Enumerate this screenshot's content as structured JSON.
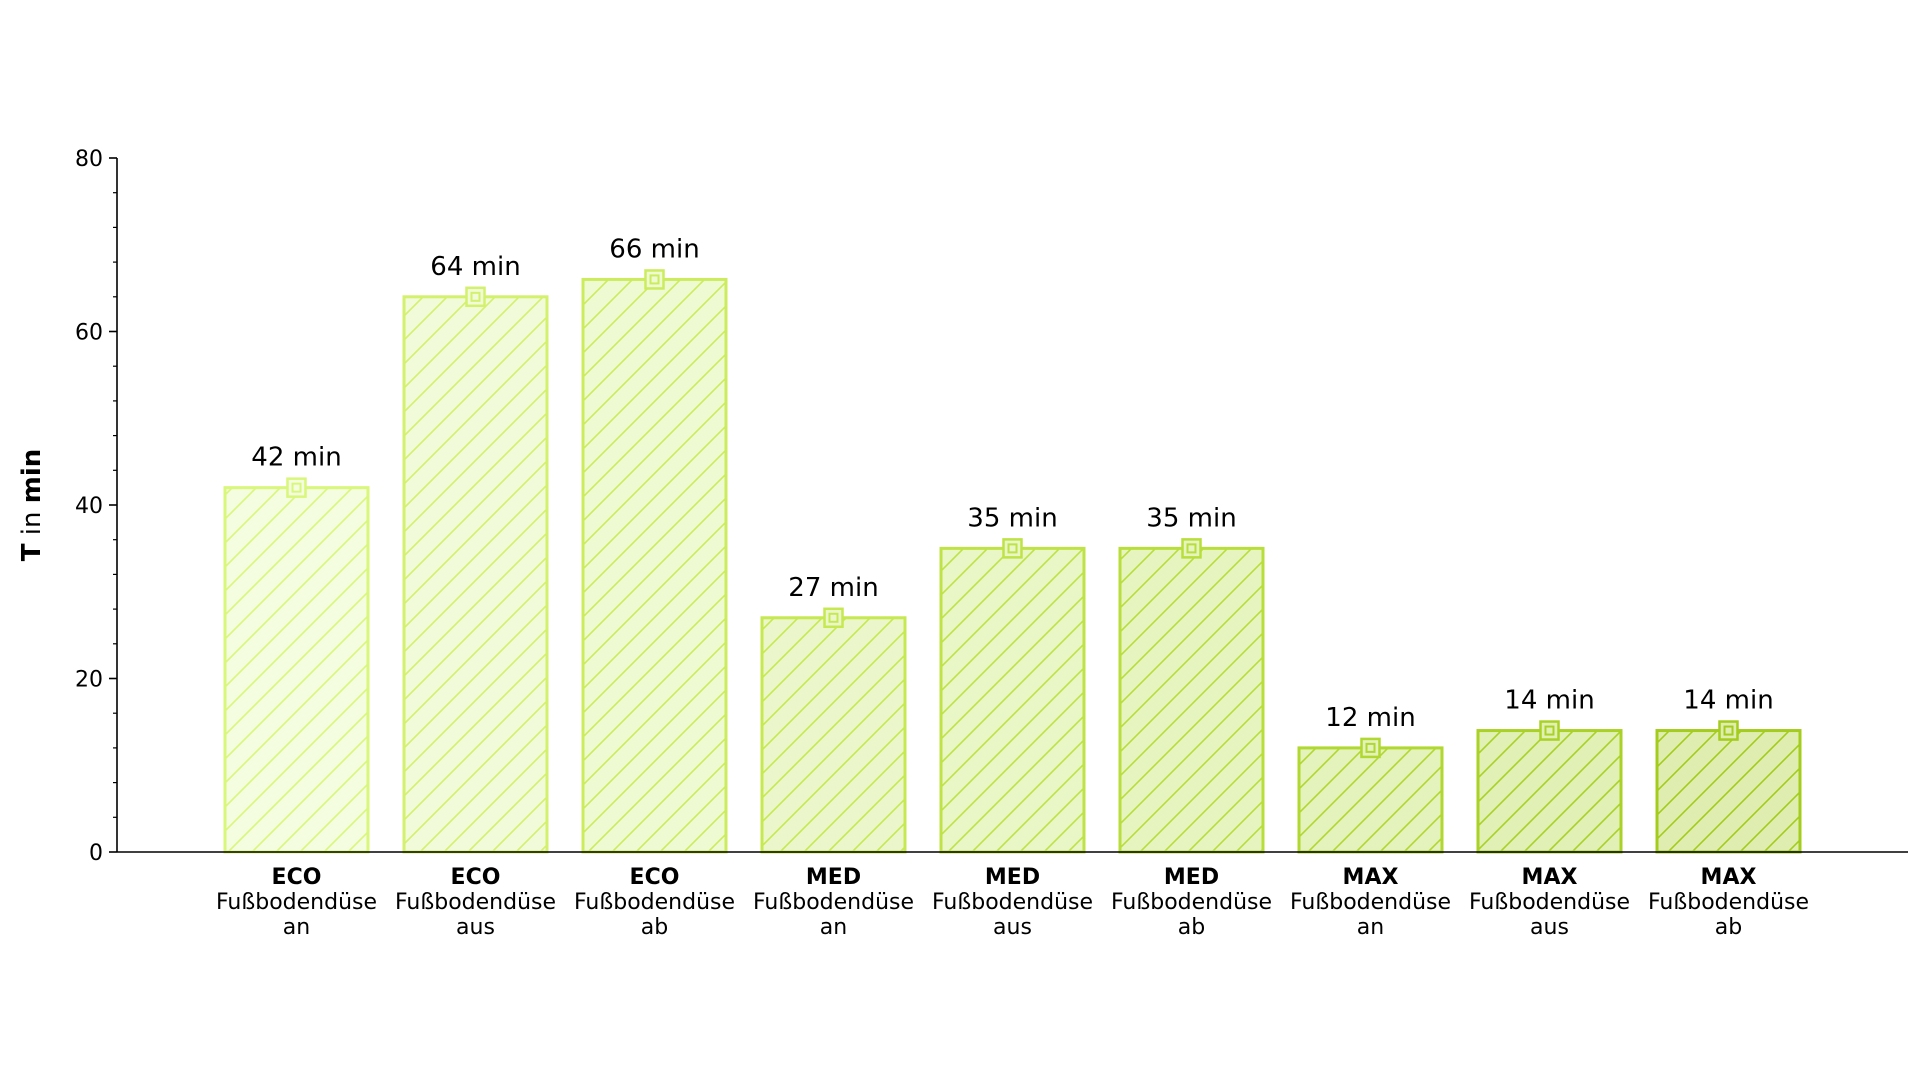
{
  "chart_data": {
    "type": "bar",
    "ylabel": {
      "symbol": "T",
      "connector": " in ",
      "unit": "min"
    },
    "ylim": [
      0,
      80
    ],
    "yticks": [
      0,
      20,
      40,
      60,
      80
    ],
    "grid": false,
    "legend": "none",
    "categories": [
      {
        "mode": "ECO",
        "line1": "Fußbodendüse",
        "line2": "an"
      },
      {
        "mode": "ECO",
        "line1": "Fußbodendüse",
        "line2": "aus"
      },
      {
        "mode": "ECO",
        "line1": "Fußbodendüse",
        "line2": "ab"
      },
      {
        "mode": "MED",
        "line1": "Fußbodendüse",
        "line2": "an"
      },
      {
        "mode": "MED",
        "line1": "Fußbodendüse",
        "line2": "aus"
      },
      {
        "mode": "MED",
        "line1": "Fußbodendüse",
        "line2": "ab"
      },
      {
        "mode": "MAX",
        "line1": "Fußbodendüse",
        "line2": "an"
      },
      {
        "mode": "MAX",
        "line1": "Fußbodendüse",
        "line2": "aus"
      },
      {
        "mode": "MAX",
        "line1": "Fußbodendüse",
        "line2": "ab"
      }
    ],
    "values": [
      42,
      64,
      66,
      27,
      35,
      35,
      12,
      14,
      14
    ],
    "data_labels": [
      "42 min",
      "64 min",
      "66 min",
      "27 min",
      "35 min",
      "35 min",
      "12 min",
      "14 min",
      "14 min"
    ],
    "colors": {
      "edges": [
        "#d9f77a",
        "#d3f16c",
        "#ccec5e",
        "#c6e851",
        "#bfe346",
        "#b8de3b",
        "#b1d830",
        "#aad226",
        "#a3cc1c"
      ],
      "fills": [
        "#f4fde0",
        "#f1fbd9",
        "#eefad2",
        "#ebf7cb",
        "#e9f6c6",
        "#e6f4c0",
        "#e4f2bb",
        "#e1f0b5",
        "#dfeeb0"
      ],
      "axis": "#000000"
    }
  }
}
